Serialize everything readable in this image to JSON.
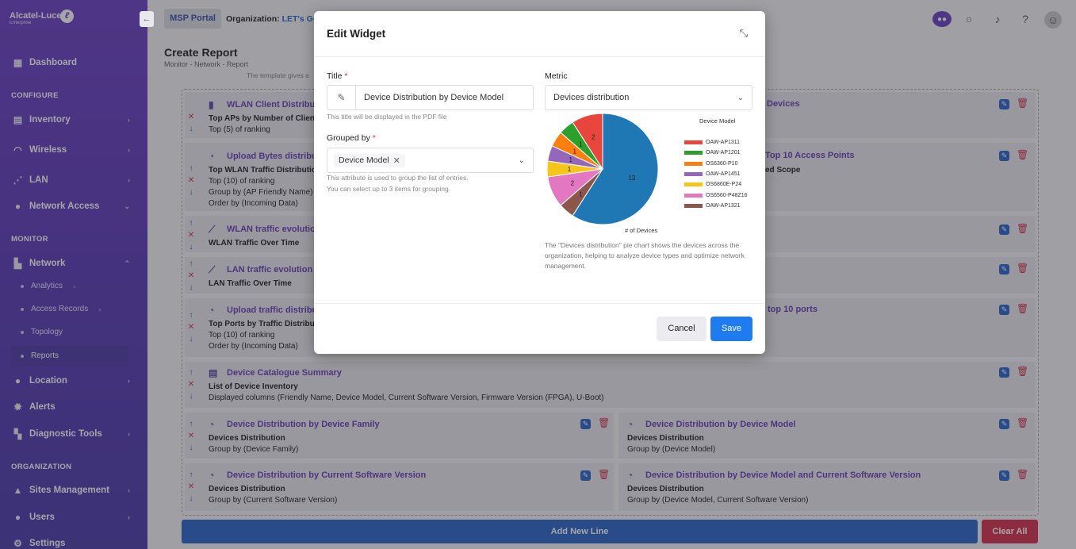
{
  "brand": {
    "name": "Alcatel-Lucent",
    "sub": "Enterprise"
  },
  "sidebar": {
    "collapse_icon": "arrow-left-icon",
    "items": [
      {
        "label": "Dashboard",
        "icon": "dashboard-icon"
      },
      {
        "label": "Inventory",
        "icon": "inventory-icon"
      },
      {
        "label": "Wireless",
        "icon": "wifi-icon"
      },
      {
        "label": "LAN",
        "icon": "lan-icon"
      },
      {
        "label": "Network Access",
        "icon": "network-access-icon"
      },
      {
        "label": "Network",
        "icon": "network-icon"
      },
      {
        "label": "Location",
        "icon": "location-icon"
      },
      {
        "label": "Alerts",
        "icon": "alerts-icon"
      },
      {
        "label": "Diagnostic Tools",
        "icon": "diagnostic-icon"
      },
      {
        "label": "Sites Management",
        "icon": "sites-icon"
      },
      {
        "label": "Users",
        "icon": "users-icon"
      },
      {
        "label": "Settings",
        "icon": "settings-icon"
      }
    ],
    "sections": {
      "configure": "CONFIGURE",
      "monitor": "MONITOR",
      "organization": "ORGANIZATION"
    },
    "network_sub": [
      "Analytics",
      "Access Records",
      "Topology",
      "Reports"
    ]
  },
  "header": {
    "portal": "MSP Portal",
    "org_label": "Organization:",
    "org_value": "LET's GO A"
  },
  "page": {
    "title": "Create Report",
    "breadcrumb": "Monitor  -  Network  -  Report",
    "partial_text": "The template gives a"
  },
  "widgets": {
    "r1_left": {
      "title": "WLAN Client Distributi",
      "l1": "Top APs by Number of Clients",
      "l2": "Top (5) of ranking"
    },
    "r1_right": {
      "title": "Devices"
    },
    "r2_left": {
      "title": "Upload Bytes distribute",
      "l1": "Top WLAN Traffic Distribution",
      "l2": "Top (10) of ranking",
      "l3": "Group by (AP Friendly Name)",
      "l4": "Order by (Incoming Data)"
    },
    "r2_right": {
      "title": "Top 10 Access Points",
      "l1": "ed Scope"
    },
    "r3_left": {
      "title": "WLAN traffic evolution",
      "l1": "WLAN Traffic Over Time"
    },
    "r4_left": {
      "title": "LAN traffic evolution",
      "l1": "LAN Traffic Over Time"
    },
    "r5_left": {
      "title": "Upload traffic distributi",
      "l1": "Top Ports by Traffic Distributio",
      "l2": "Top (10) of ranking",
      "l3": "Order by (Incoming Data)"
    },
    "r5_right": {
      "title": "top 10 ports"
    },
    "r6": {
      "title": "Device Catalogue Summary",
      "l1": "List of Device Inventory",
      "l2": "Displayed columns (Friendly Name, Device Model, Current Software Version, Firmware Version (FPGA), U-Boot)"
    },
    "r7_left": {
      "title": "Device Distribution by Device Family",
      "l1": "Devices Distribution",
      "l2": "Group by (Device Family)"
    },
    "r7_right": {
      "title": "Device Distribution by Device Model",
      "l1": "Devices Distribution",
      "l2": "Group by (Device Model)"
    },
    "r8_left": {
      "title": "Device Distribution by Current Software Version",
      "l1": "Devices Distribution",
      "l2": "Group by (Current Software Version)"
    },
    "r8_right": {
      "title": "Device Distribution by Device Model and Current Software Version",
      "l1": "Devices Distribution",
      "l2": "Group by (Device Model, Current Software Version)"
    }
  },
  "footer": {
    "add_line": "Add New Line",
    "clear_all": "Clear All"
  },
  "modal": {
    "title": "Edit Widget",
    "title_label": "Title",
    "title_value": "Device Distribution by Device Model",
    "title_hint": "This title will be displayed in the PDF file",
    "grouped_label": "Grouped by",
    "grouped_chip": "Device Model",
    "grouped_hint1": "This attribute is used to group the list of entries.",
    "grouped_hint2": "You can select up to 3 items for grouping.",
    "metric_label": "Metric",
    "metric_value": "Devices distribution",
    "description": "The \"Devices distribution\" pie chart shows the devices across the organization, helping to analyze device types and optimize network management.",
    "cancel": "Cancel",
    "save": "Save"
  },
  "chart_data": {
    "type": "pie",
    "legend_title": "Device Model",
    "axis_label": "# of Devices",
    "series": [
      {
        "name": "OAW-AP1311",
        "value": 2,
        "color": "#e8453c"
      },
      {
        "name": "OAW-AP1201",
        "value": 1,
        "color": "#2ca02c"
      },
      {
        "name": "OS6360-P10",
        "value": 1,
        "color": "#ff7f0e"
      },
      {
        "name": "OAW-AP1451",
        "value": 1,
        "color": "#9467bd"
      },
      {
        "name": "OS6860E-P24",
        "value": 1,
        "color": "#f5c518"
      },
      {
        "name": "OS6560-P48Z16",
        "value": 2,
        "color": "#e377c2"
      },
      {
        "name": "OAW-AP1321",
        "value": 1,
        "color": "#8c564b"
      },
      {
        "name": "",
        "value": 13,
        "color": "#1f77b4"
      }
    ]
  }
}
